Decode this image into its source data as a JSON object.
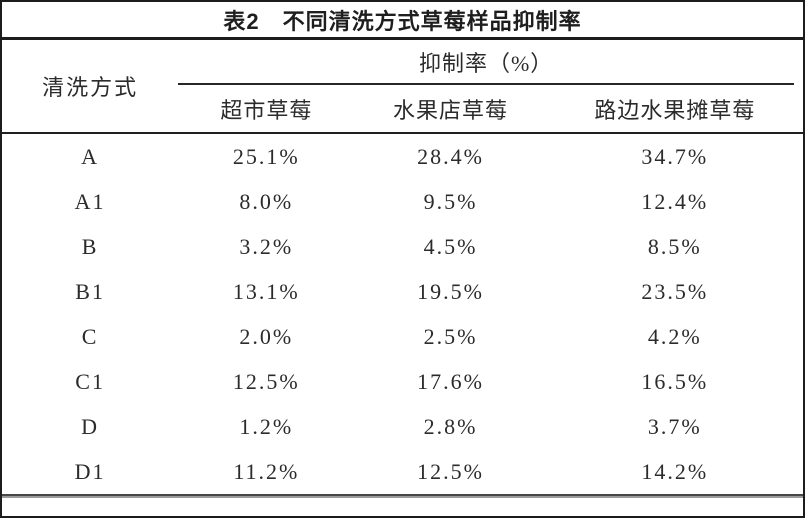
{
  "document": {
    "title": "表2　不同清洗方式草莓样品抑制率"
  },
  "table": {
    "method_column_header": "清洗方式",
    "group_header": "抑制率（%）",
    "columns": [
      "超市草莓",
      "水果店草莓",
      "路边水果摊草莓"
    ],
    "rows": [
      {
        "method": "A",
        "values": [
          "25.1%",
          "28.4%",
          "34.7%"
        ]
      },
      {
        "method": "A1",
        "values": [
          "8.0%",
          "9.5%",
          "12.4%"
        ]
      },
      {
        "method": "B",
        "values": [
          "3.2%",
          "4.5%",
          "8.5%"
        ]
      },
      {
        "method": "B1",
        "values": [
          "13.1%",
          "19.5%",
          "23.5%"
        ]
      },
      {
        "method": "C",
        "values": [
          "2.0%",
          "2.5%",
          "4.2%"
        ]
      },
      {
        "method": "C1",
        "values": [
          "12.5%",
          "17.6%",
          "16.5%"
        ]
      },
      {
        "method": "D",
        "values": [
          "1.2%",
          "2.8%",
          "3.7%"
        ]
      },
      {
        "method": "D1",
        "values": [
          "11.2%",
          "12.5%",
          "14.2%"
        ]
      }
    ],
    "colors": {
      "text": "#2b2b2b",
      "rule": "#1f1f1f",
      "bottom_rule": "#555555",
      "background": "#ffffff"
    }
  }
}
